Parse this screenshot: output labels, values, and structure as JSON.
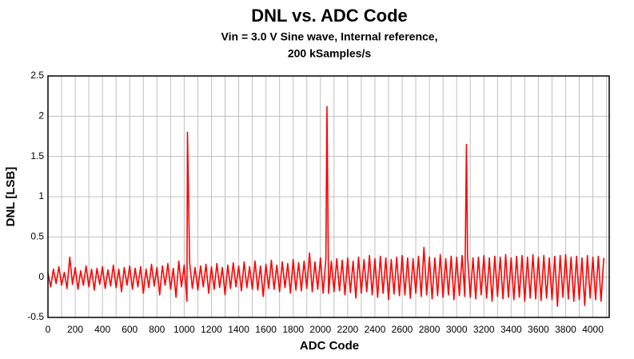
{
  "chart_data": {
    "type": "line",
    "title": "DNL vs. ADC Code",
    "subtitle": [
      "Vin = 3.0 V Sine wave, Internal reference,",
      "200 kSamples/s"
    ],
    "x_label": "ADC Code",
    "y_label": "DNL [LSB]",
    "xlim": [
      0,
      4120
    ],
    "ylim": [
      -0.5,
      2.5
    ],
    "xticks": [
      0,
      200,
      400,
      600,
      800,
      1000,
      1200,
      1400,
      1600,
      1800,
      2000,
      2200,
      2400,
      2600,
      2800,
      3000,
      3200,
      3400,
      3600,
      3800,
      4000
    ],
    "xminorticks": [
      100,
      300,
      500,
      700,
      900,
      1100,
      1300,
      1500,
      1700,
      1900,
      2100,
      2300,
      2500,
      2700,
      2900,
      3100,
      3300,
      3500,
      3700,
      3900,
      4100
    ],
    "yticks": [
      -0.5,
      0,
      0.5,
      1,
      1.5,
      2,
      2.5
    ],
    "grid": true,
    "x": [
      0,
      20,
      40,
      60,
      80,
      100,
      120,
      140,
      160,
      180,
      200,
      220,
      240,
      260,
      280,
      300,
      320,
      340,
      360,
      380,
      400,
      420,
      440,
      460,
      480,
      500,
      520,
      540,
      560,
      580,
      600,
      620,
      640,
      660,
      680,
      700,
      720,
      740,
      760,
      780,
      800,
      820,
      840,
      860,
      880,
      900,
      920,
      940,
      960,
      980,
      1000,
      1020,
      1024,
      1040,
      1060,
      1080,
      1100,
      1120,
      1140,
      1160,
      1180,
      1200,
      1220,
      1240,
      1260,
      1280,
      1300,
      1320,
      1340,
      1360,
      1380,
      1400,
      1420,
      1440,
      1460,
      1480,
      1500,
      1520,
      1540,
      1560,
      1580,
      1600,
      1620,
      1640,
      1660,
      1680,
      1700,
      1720,
      1740,
      1760,
      1780,
      1800,
      1820,
      1840,
      1860,
      1880,
      1900,
      1920,
      1940,
      1960,
      1980,
      2000,
      2020,
      2040,
      2048,
      2060,
      2080,
      2100,
      2120,
      2140,
      2160,
      2180,
      2200,
      2220,
      2240,
      2260,
      2280,
      2300,
      2320,
      2340,
      2360,
      2380,
      2400,
      2420,
      2440,
      2460,
      2480,
      2500,
      2520,
      2540,
      2560,
      2580,
      2600,
      2620,
      2640,
      2660,
      2680,
      2700,
      2720,
      2740,
      2760,
      2780,
      2800,
      2820,
      2840,
      2860,
      2880,
      2900,
      2920,
      2940,
      2960,
      2980,
      3000,
      3020,
      3040,
      3060,
      3072,
      3080,
      3100,
      3120,
      3140,
      3160,
      3180,
      3200,
      3220,
      3240,
      3260,
      3280,
      3300,
      3320,
      3340,
      3360,
      3380,
      3400,
      3420,
      3440,
      3460,
      3480,
      3500,
      3520,
      3540,
      3560,
      3580,
      3600,
      3620,
      3640,
      3660,
      3680,
      3700,
      3720,
      3740,
      3760,
      3780,
      3800,
      3820,
      3840,
      3860,
      3880,
      3900,
      3920,
      3940,
      3960,
      3980,
      4000,
      4020,
      4040,
      4060,
      4080
    ],
    "series": [
      {
        "name": "DNL",
        "color": "#ff0000",
        "values": [
          0.05,
          -0.12,
          0.1,
          -0.08,
          0.13,
          -0.1,
          0.06,
          -0.14,
          0.25,
          -0.09,
          0.12,
          -0.15,
          0.08,
          -0.1,
          0.14,
          -0.12,
          0.1,
          -0.16,
          0.11,
          -0.09,
          0.13,
          -0.14,
          0.09,
          -0.11,
          0.15,
          -0.13,
          0.1,
          -0.18,
          0.12,
          -0.1,
          0.14,
          -0.15,
          0.11,
          -0.12,
          0.13,
          -0.2,
          0.1,
          -0.13,
          0.16,
          -0.11,
          0.12,
          -0.22,
          0.14,
          -0.1,
          0.17,
          -0.15,
          0.11,
          -0.25,
          0.2,
          -0.12,
          0.15,
          -0.3,
          1.8,
          0.18,
          -0.14,
          0.12,
          -0.16,
          0.14,
          -0.12,
          0.16,
          -0.2,
          0.13,
          -0.15,
          0.17,
          -0.13,
          0.12,
          -0.22,
          0.15,
          -0.14,
          0.18,
          -0.12,
          0.14,
          -0.17,
          0.19,
          -0.13,
          0.13,
          -0.15,
          0.2,
          -0.16,
          0.14,
          -0.24,
          0.16,
          -0.14,
          0.21,
          -0.15,
          0.15,
          -0.18,
          0.19,
          -0.13,
          0.17,
          -0.2,
          0.22,
          -0.16,
          0.18,
          -0.17,
          0.2,
          -0.14,
          0.3,
          -0.18,
          0.19,
          -0.15,
          0.24,
          -0.2,
          0.22,
          2.12,
          -0.2,
          0.2,
          -0.18,
          0.23,
          -0.17,
          0.21,
          -0.22,
          0.24,
          -0.19,
          0.2,
          -0.26,
          0.25,
          -0.2,
          0.22,
          -0.18,
          0.27,
          -0.22,
          0.23,
          -0.25,
          0.26,
          -0.2,
          0.24,
          -0.28,
          0.22,
          -0.21,
          0.25,
          -0.23,
          0.27,
          -0.22,
          0.24,
          -0.26,
          0.23,
          -0.2,
          0.26,
          -0.24,
          0.37,
          -0.22,
          0.25,
          -0.27,
          0.24,
          -0.23,
          0.28,
          -0.25,
          0.23,
          -0.22,
          0.26,
          -0.28,
          0.25,
          -0.23,
          0.27,
          -0.24,
          1.65,
          0.26,
          -0.25,
          0.24,
          -0.27,
          0.25,
          -0.22,
          0.27,
          -0.26,
          0.24,
          -0.3,
          0.26,
          -0.24,
          0.25,
          -0.27,
          0.28,
          -0.25,
          0.24,
          -0.28,
          0.26,
          -0.25,
          0.27,
          -0.3,
          0.25,
          -0.26,
          0.28,
          -0.27,
          0.25,
          -0.29,
          0.27,
          -0.26,
          0.24,
          -0.28,
          0.26,
          -0.36,
          0.27,
          -0.25,
          0.28,
          -0.27,
          0.25,
          -0.3,
          0.26,
          -0.28,
          0.24,
          -0.35,
          0.27,
          -0.26,
          0.25,
          -0.28,
          0.26,
          -0.3,
          0.24
        ]
      }
    ]
  }
}
